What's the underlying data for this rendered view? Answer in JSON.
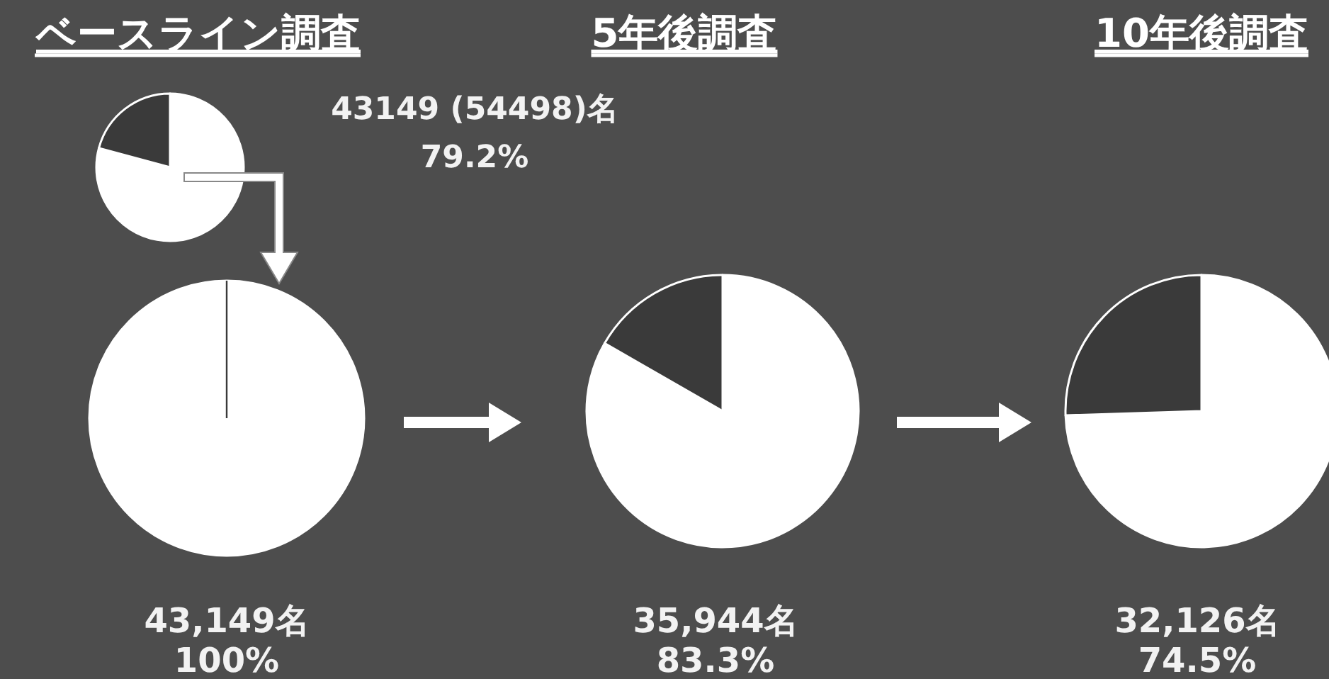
{
  "chart_data": [
    {
      "type": "pie",
      "title": "ベースライン調査",
      "categories": [
        null,
        null
      ],
      "values": [
        79.2,
        20.8
      ],
      "colors": [
        "#ffffff",
        "#3a3a3a"
      ],
      "annotations": [
        "43149 (54498)名",
        "79.2%"
      ]
    },
    {
      "type": "pie",
      "categories": [
        null
      ],
      "values": [
        100
      ],
      "colors": [
        "#ffffff"
      ],
      "annotations": [
        "43,149名",
        "100%"
      ]
    },
    {
      "type": "pie",
      "title": "5年後調査",
      "categories": [
        null,
        null
      ],
      "values": [
        83.3,
        16.7
      ],
      "colors": [
        "#ffffff",
        "#3a3a3a"
      ],
      "annotations": [
        "35,944名",
        "83.3%"
      ]
    },
    {
      "type": "pie",
      "title": "10年後調査",
      "categories": [
        null,
        null
      ],
      "values": [
        74.5,
        25.5
      ],
      "colors": [
        "#ffffff",
        "#3a3a3a"
      ],
      "annotations": [
        "32,126名",
        "74.5%"
      ]
    }
  ]
}
